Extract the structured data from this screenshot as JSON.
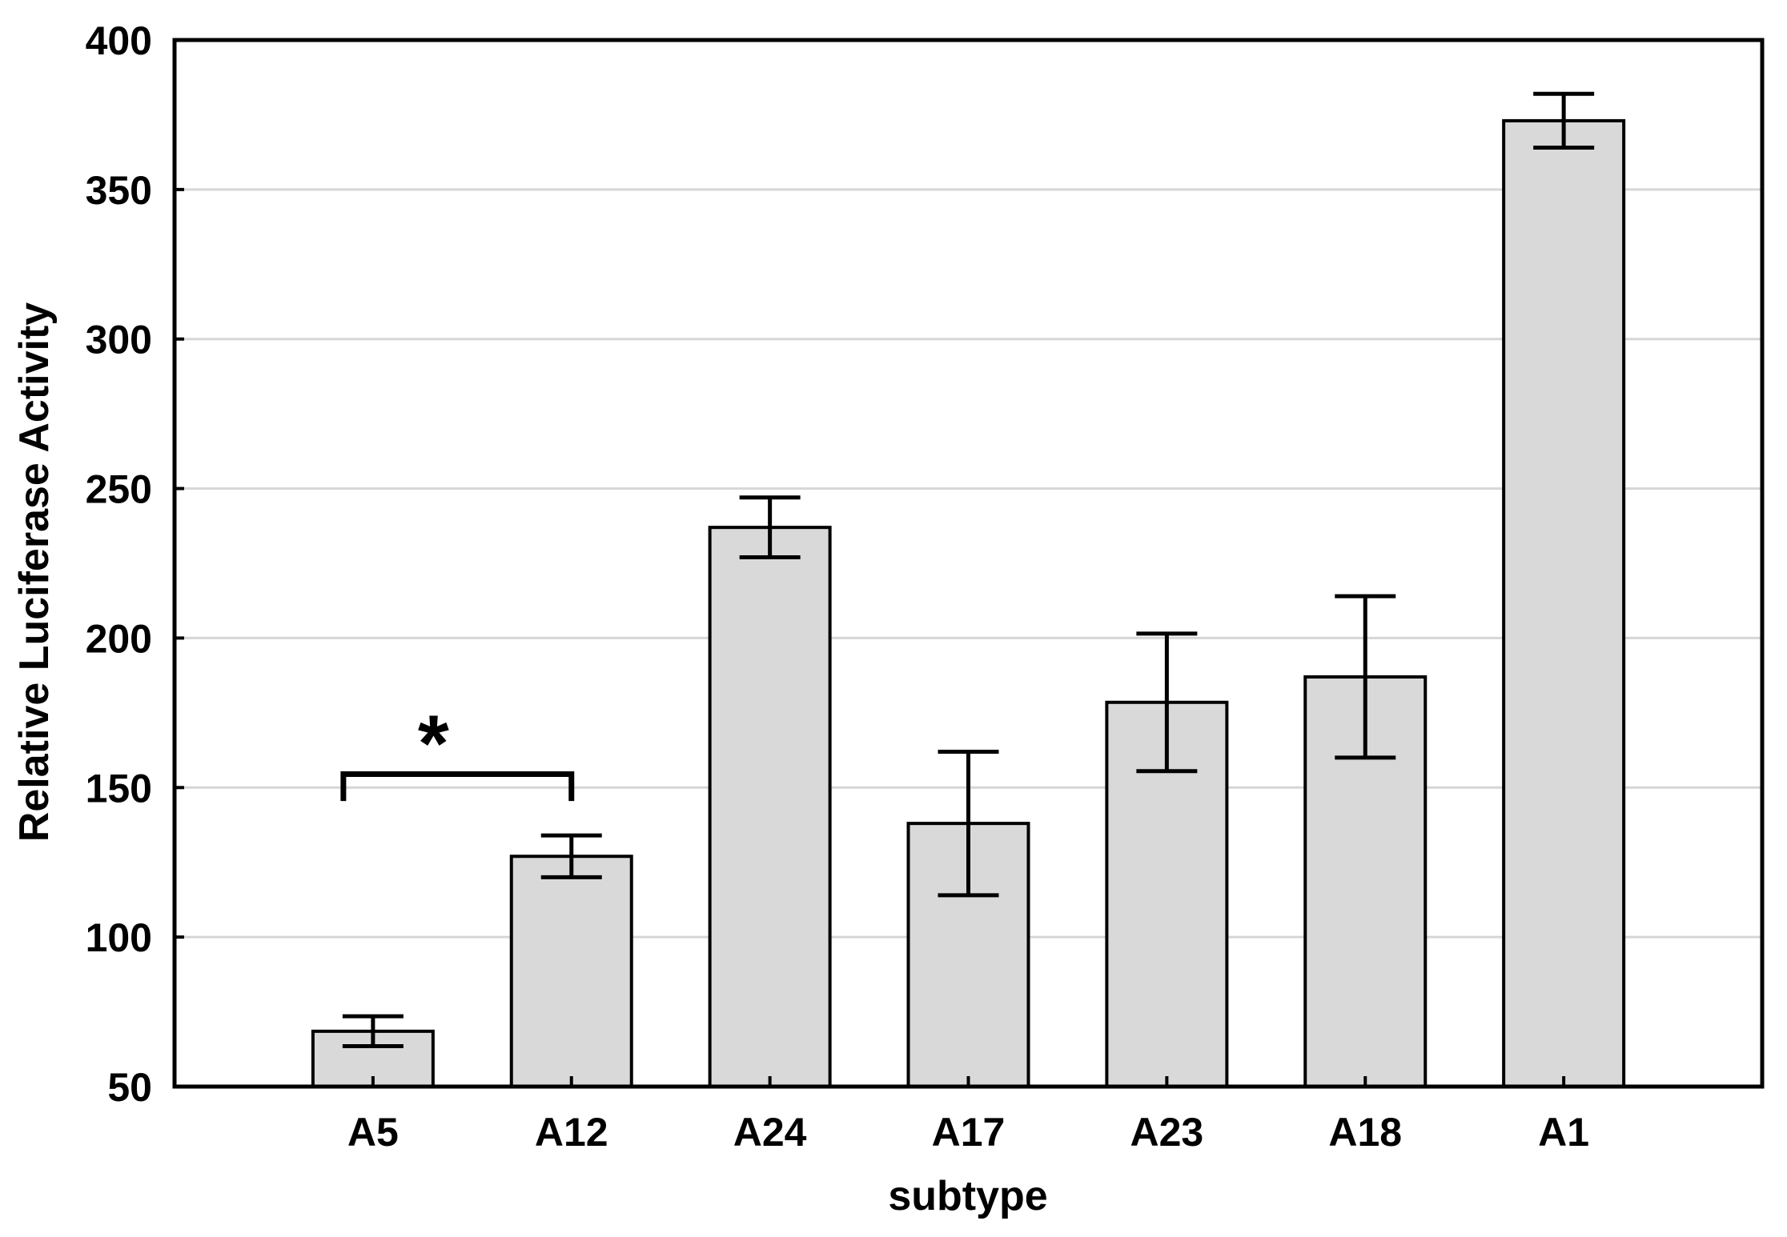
{
  "chart_data": {
    "type": "bar",
    "title": "",
    "xlabel": "subtype",
    "ylabel": "Relative Luciferase Activity",
    "categories": [
      "A5",
      "A12",
      "A24",
      "A17",
      "A23",
      "A18",
      "A1"
    ],
    "values": [
      68.5,
      127,
      237,
      138,
      178.5,
      187,
      373
    ],
    "errors": [
      5,
      7,
      10,
      24,
      23,
      27,
      9
    ],
    "ylim": [
      50,
      400
    ],
    "yticks": [
      50,
      100,
      150,
      200,
      250,
      300,
      350,
      400
    ],
    "grid": "horizontal-only",
    "legend": "none",
    "bar_fill": "#d9d9d9",
    "bar_stroke": "#000000",
    "gridline_color": "#d6d6d6",
    "frame_color": "#000000",
    "significance": {
      "symbol": "*",
      "between": [
        "A5",
        "A12"
      ],
      "bracket_y": 154.5,
      "tick_drop": 9
    }
  }
}
